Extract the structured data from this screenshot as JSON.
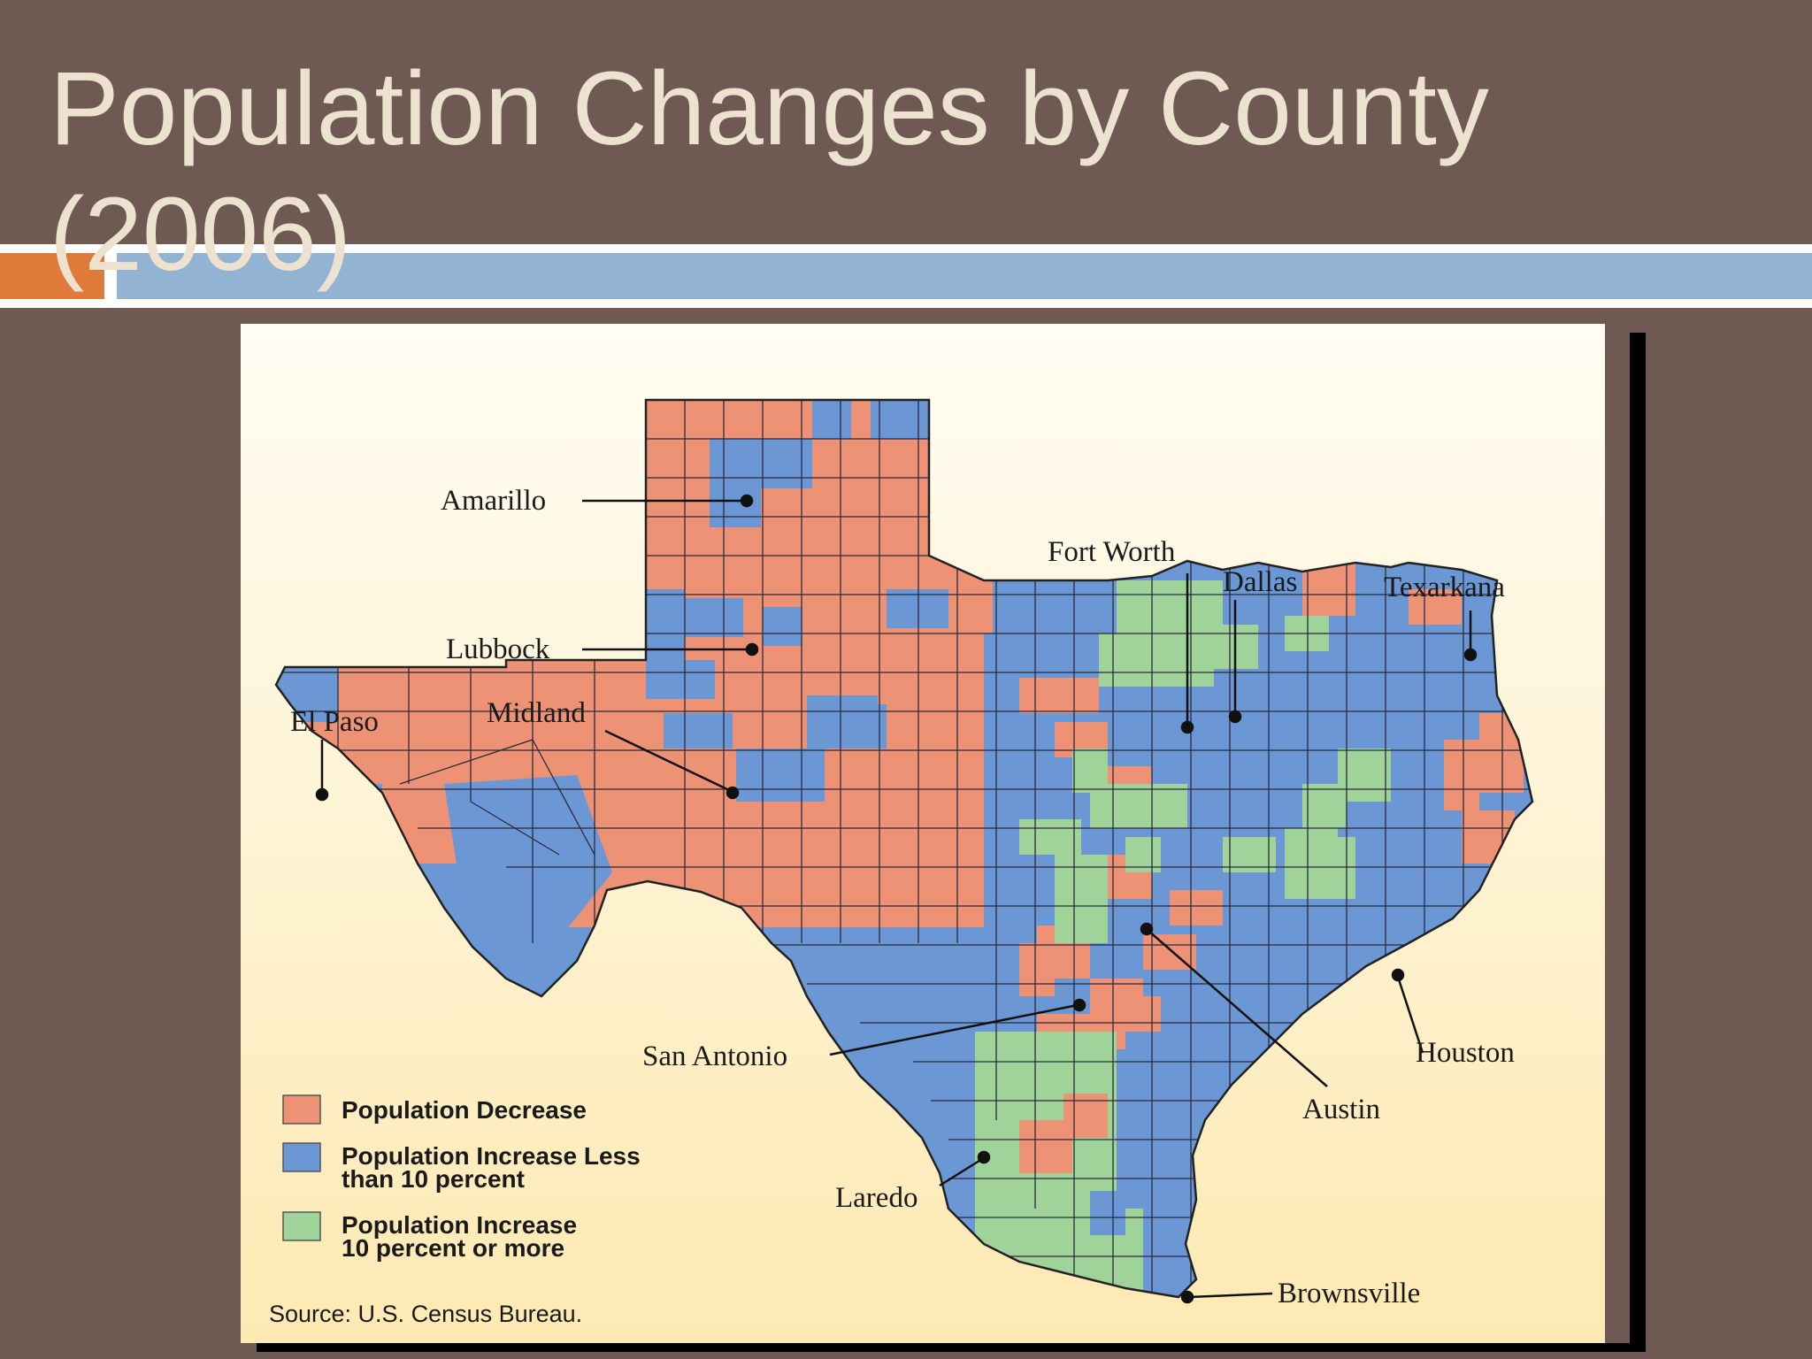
{
  "slide": {
    "title": "Population Changes by County (2006)"
  },
  "colors": {
    "decrease": "#ee9275",
    "increase_low": "#6b97d4",
    "increase_high": "#9fd39a",
    "map_bg_top": "#fffdf4",
    "map_bg_bottom": "#fde9b2"
  },
  "map": {
    "cities": {
      "amarillo": "Amarillo",
      "lubbock": "Lubbock",
      "el_paso": "El Paso",
      "midland": "Midland",
      "fort_worth": "Fort Worth",
      "dallas": "Dallas",
      "texarkana": "Texarkana",
      "san_antonio": "San Antonio",
      "austin": "Austin",
      "houston": "Houston",
      "laredo": "Laredo",
      "brownsville": "Brownsville"
    },
    "legend": {
      "decrease": "Population Decrease",
      "increase_low_line1": "Population Increase Less",
      "increase_low_line2": "than 10 percent",
      "increase_high_line1": "Population Increase",
      "increase_high_line2": "10 percent or more"
    },
    "source": "Source: U.S. Census Bureau."
  }
}
